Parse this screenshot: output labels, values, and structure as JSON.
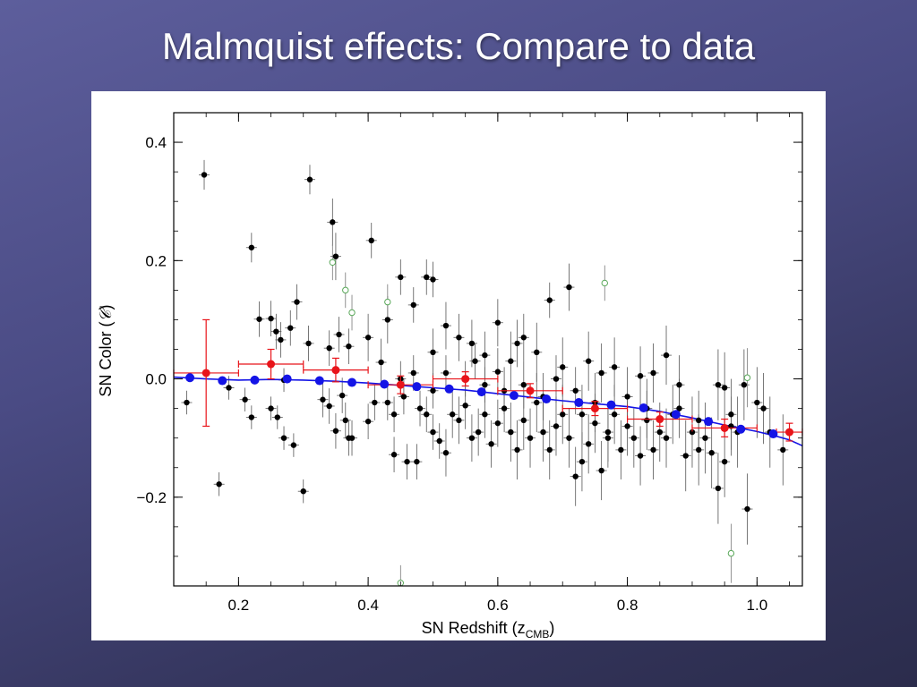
{
  "slide": {
    "title": "Malmquist effects: Compare to data"
  },
  "colors": {
    "data_points": "#000000",
    "binned_data": "#e8141a",
    "model_points": "#1414e6",
    "excluded_points": "#5aa85a"
  },
  "chart_data": {
    "type": "scatter",
    "title": "",
    "xlabel_main": "SN Redshift (z",
    "xlabel_sub": "CMB",
    "xlabel_close": ")",
    "ylabel_main": "SN Color (",
    "ylabel_symbol": "𝒞",
    "ylabel_close": ")",
    "xlim": [
      0.1,
      1.07
    ],
    "ylim": [
      -0.35,
      0.45
    ],
    "x_ticks": [
      {
        "value": 0.2,
        "label": "0.2"
      },
      {
        "value": 0.4,
        "label": "0.4"
      },
      {
        "value": 0.6,
        "label": "0.6"
      },
      {
        "value": 0.8,
        "label": "0.8"
      },
      {
        "value": 1.0,
        "label": "1.0"
      }
    ],
    "y_ticks": [
      {
        "value": 0.4,
        "label": "0.4"
      },
      {
        "value": 0.2,
        "label": "0.2"
      },
      {
        "value": 0.0,
        "label": "0.0"
      },
      {
        "value": -0.2,
        "label": "−0.2"
      }
    ],
    "grid": false,
    "legend": "none",
    "series": [
      {
        "style": "black-filled-with-errorbars",
        "points": [
          {
            "x": 0.147,
            "y": 0.345,
            "err": 0.025
          },
          {
            "x": 0.31,
            "y": 0.337,
            "err": 0.025
          },
          {
            "x": 0.345,
            "y": 0.265,
            "err": 0.04
          },
          {
            "x": 0.22,
            "y": 0.222,
            "err": 0.025
          },
          {
            "x": 0.405,
            "y": 0.234,
            "err": 0.03
          },
          {
            "x": 0.35,
            "y": 0.207,
            "err": 0.04
          },
          {
            "x": 0.45,
            "y": 0.172,
            "err": 0.03
          },
          {
            "x": 0.49,
            "y": 0.172,
            "err": 0.03
          },
          {
            "x": 0.5,
            "y": 0.168,
            "err": 0.03
          },
          {
            "x": 0.71,
            "y": 0.155,
            "err": 0.04
          },
          {
            "x": 0.68,
            "y": 0.133,
            "err": 0.03
          },
          {
            "x": 0.29,
            "y": 0.13,
            "err": 0.03
          },
          {
            "x": 0.47,
            "y": 0.125,
            "err": 0.03
          },
          {
            "x": 0.232,
            "y": 0.101,
            "err": 0.03
          },
          {
            "x": 0.25,
            "y": 0.102,
            "err": 0.03
          },
          {
            "x": 0.258,
            "y": 0.08,
            "err": 0.03
          },
          {
            "x": 0.28,
            "y": 0.086,
            "err": 0.03
          },
          {
            "x": 0.265,
            "y": 0.066,
            "err": 0.03
          },
          {
            "x": 0.308,
            "y": 0.06,
            "err": 0.03
          },
          {
            "x": 0.355,
            "y": 0.075,
            "err": 0.03
          },
          {
            "x": 0.34,
            "y": 0.052,
            "err": 0.03
          },
          {
            "x": 0.37,
            "y": 0.055,
            "err": 0.03
          },
          {
            "x": 0.43,
            "y": 0.1,
            "err": 0.04
          },
          {
            "x": 0.52,
            "y": 0.09,
            "err": 0.04
          },
          {
            "x": 0.6,
            "y": 0.095,
            "err": 0.04
          },
          {
            "x": 0.63,
            "y": 0.06,
            "err": 0.04
          },
          {
            "x": 0.56,
            "y": 0.06,
            "err": 0.04
          },
          {
            "x": 0.54,
            "y": 0.07,
            "err": 0.04
          },
          {
            "x": 0.64,
            "y": 0.07,
            "err": 0.04
          },
          {
            "x": 0.4,
            "y": 0.07,
            "err": 0.04
          },
          {
            "x": 0.42,
            "y": 0.028,
            "err": 0.04
          },
          {
            "x": 0.5,
            "y": 0.045,
            "err": 0.04
          },
          {
            "x": 0.58,
            "y": 0.04,
            "err": 0.04
          },
          {
            "x": 0.62,
            "y": 0.03,
            "err": 0.05
          },
          {
            "x": 0.66,
            "y": 0.045,
            "err": 0.05
          },
          {
            "x": 0.7,
            "y": 0.02,
            "err": 0.05
          },
          {
            "x": 0.74,
            "y": 0.03,
            "err": 0.05
          },
          {
            "x": 0.76,
            "y": 0.01,
            "err": 0.05
          },
          {
            "x": 0.78,
            "y": 0.02,
            "err": 0.05
          },
          {
            "x": 0.82,
            "y": 0.005,
            "err": 0.05
          },
          {
            "x": 0.84,
            "y": 0.01,
            "err": 0.05
          },
          {
            "x": 0.86,
            "y": 0.04,
            "err": 0.05
          },
          {
            "x": 0.88,
            "y": -0.01,
            "err": 0.05
          },
          {
            "x": 0.94,
            "y": -0.01,
            "err": 0.06
          },
          {
            "x": 0.95,
            "y": -0.015,
            "err": 0.06
          },
          {
            "x": 0.98,
            "y": -0.01,
            "err": 0.06
          },
          {
            "x": 1.0,
            "y": -0.04,
            "err": 0.06
          },
          {
            "x": 1.01,
            "y": -0.05,
            "err": 0.06
          },
          {
            "x": 0.12,
            "y": -0.04,
            "err": 0.02
          },
          {
            "x": 0.185,
            "y": -0.015,
            "err": 0.02
          },
          {
            "x": 0.21,
            "y": -0.035,
            "err": 0.02
          },
          {
            "x": 0.22,
            "y": -0.065,
            "err": 0.02
          },
          {
            "x": 0.25,
            "y": -0.05,
            "err": 0.02
          },
          {
            "x": 0.26,
            "y": -0.065,
            "err": 0.02
          },
          {
            "x": 0.27,
            "y": -0.1,
            "err": 0.02
          },
          {
            "x": 0.285,
            "y": -0.112,
            "err": 0.02
          },
          {
            "x": 0.27,
            "y": -0.002,
            "err": 0.02
          },
          {
            "x": 0.33,
            "y": -0.035,
            "err": 0.03
          },
          {
            "x": 0.34,
            "y": -0.046,
            "err": 0.03
          },
          {
            "x": 0.36,
            "y": -0.028,
            "err": 0.03
          },
          {
            "x": 0.365,
            "y": -0.07,
            "err": 0.03
          },
          {
            "x": 0.37,
            "y": -0.1,
            "err": 0.03
          },
          {
            "x": 0.375,
            "y": -0.1,
            "err": 0.03
          },
          {
            "x": 0.35,
            "y": -0.088,
            "err": 0.03
          },
          {
            "x": 0.4,
            "y": -0.072,
            "err": 0.03
          },
          {
            "x": 0.41,
            "y": -0.04,
            "err": 0.03
          },
          {
            "x": 0.43,
            "y": -0.04,
            "err": 0.03
          },
          {
            "x": 0.44,
            "y": -0.06,
            "err": 0.03
          },
          {
            "x": 0.455,
            "y": -0.03,
            "err": 0.03
          },
          {
            "x": 0.46,
            "y": -0.14,
            "err": 0.03
          },
          {
            "x": 0.475,
            "y": -0.14,
            "err": 0.03
          },
          {
            "x": 0.44,
            "y": -0.128,
            "err": 0.03
          },
          {
            "x": 0.48,
            "y": -0.05,
            "err": 0.03
          },
          {
            "x": 0.49,
            "y": -0.06,
            "err": 0.03
          },
          {
            "x": 0.5,
            "y": -0.09,
            "err": 0.03
          },
          {
            "x": 0.51,
            "y": -0.105,
            "err": 0.03
          },
          {
            "x": 0.52,
            "y": -0.125,
            "err": 0.04
          },
          {
            "x": 0.53,
            "y": -0.06,
            "err": 0.04
          },
          {
            "x": 0.54,
            "y": -0.07,
            "err": 0.04
          },
          {
            "x": 0.55,
            "y": -0.045,
            "err": 0.04
          },
          {
            "x": 0.56,
            "y": -0.1,
            "err": 0.04
          },
          {
            "x": 0.57,
            "y": -0.09,
            "err": 0.04
          },
          {
            "x": 0.58,
            "y": -0.06,
            "err": 0.04
          },
          {
            "x": 0.59,
            "y": -0.11,
            "err": 0.04
          },
          {
            "x": 0.6,
            "y": -0.075,
            "err": 0.04
          },
          {
            "x": 0.61,
            "y": -0.05,
            "err": 0.04
          },
          {
            "x": 0.62,
            "y": -0.09,
            "err": 0.05
          },
          {
            "x": 0.63,
            "y": -0.12,
            "err": 0.05
          },
          {
            "x": 0.64,
            "y": -0.07,
            "err": 0.05
          },
          {
            "x": 0.65,
            "y": -0.1,
            "err": 0.05
          },
          {
            "x": 0.66,
            "y": -0.04,
            "err": 0.05
          },
          {
            "x": 0.67,
            "y": -0.09,
            "err": 0.05
          },
          {
            "x": 0.68,
            "y": -0.12,
            "err": 0.05
          },
          {
            "x": 0.69,
            "y": -0.08,
            "err": 0.05
          },
          {
            "x": 0.7,
            "y": -0.06,
            "err": 0.05
          },
          {
            "x": 0.71,
            "y": -0.1,
            "err": 0.05
          },
          {
            "x": 0.72,
            "y": -0.165,
            "err": 0.05
          },
          {
            "x": 0.73,
            "y": -0.14,
            "err": 0.05
          },
          {
            "x": 0.74,
            "y": -0.11,
            "err": 0.05
          },
          {
            "x": 0.75,
            "y": -0.075,
            "err": 0.05
          },
          {
            "x": 0.76,
            "y": -0.155,
            "err": 0.05
          },
          {
            "x": 0.77,
            "y": -0.09,
            "err": 0.05
          },
          {
            "x": 0.78,
            "y": -0.06,
            "err": 0.05
          },
          {
            "x": 0.79,
            "y": -0.12,
            "err": 0.05
          },
          {
            "x": 0.8,
            "y": -0.08,
            "err": 0.05
          },
          {
            "x": 0.81,
            "y": -0.1,
            "err": 0.05
          },
          {
            "x": 0.82,
            "y": -0.13,
            "err": 0.05
          },
          {
            "x": 0.83,
            "y": -0.07,
            "err": 0.05
          },
          {
            "x": 0.84,
            "y": -0.12,
            "err": 0.05
          },
          {
            "x": 0.85,
            "y": -0.09,
            "err": 0.05
          },
          {
            "x": 0.86,
            "y": -0.1,
            "err": 0.05
          },
          {
            "x": 0.87,
            "y": -0.06,
            "err": 0.05
          },
          {
            "x": 0.89,
            "y": -0.13,
            "err": 0.06
          },
          {
            "x": 0.9,
            "y": -0.09,
            "err": 0.06
          },
          {
            "x": 0.91,
            "y": -0.12,
            "err": 0.06
          },
          {
            "x": 0.92,
            "y": -0.1,
            "err": 0.06
          },
          {
            "x": 0.93,
            "y": -0.125,
            "err": 0.06
          },
          {
            "x": 0.94,
            "y": -0.185,
            "err": 0.06
          },
          {
            "x": 0.95,
            "y": -0.14,
            "err": 0.06
          },
          {
            "x": 0.96,
            "y": -0.06,
            "err": 0.06
          },
          {
            "x": 0.97,
            "y": -0.09,
            "err": 0.06
          },
          {
            "x": 0.985,
            "y": -0.22,
            "err": 0.06
          },
          {
            "x": 1.02,
            "y": -0.09,
            "err": 0.06
          },
          {
            "x": 1.04,
            "y": -0.12,
            "err": 0.06
          },
          {
            "x": 0.3,
            "y": -0.19,
            "err": 0.02
          },
          {
            "x": 0.17,
            "y": -0.178,
            "err": 0.02
          },
          {
            "x": 0.45,
            "y": 0.0,
            "err": 0.03
          },
          {
            "x": 0.47,
            "y": 0.01,
            "err": 0.03
          },
          {
            "x": 0.5,
            "y": -0.02,
            "err": 0.03
          },
          {
            "x": 0.55,
            "y": 0.0,
            "err": 0.03
          },
          {
            "x": 0.58,
            "y": -0.01,
            "err": 0.03
          },
          {
            "x": 0.61,
            "y": -0.02,
            "err": 0.04
          },
          {
            "x": 0.64,
            "y": -0.01,
            "err": 0.04
          },
          {
            "x": 0.67,
            "y": -0.03,
            "err": 0.04
          },
          {
            "x": 0.72,
            "y": -0.02,
            "err": 0.04
          },
          {
            "x": 0.75,
            "y": -0.04,
            "err": 0.05
          },
          {
            "x": 0.8,
            "y": -0.03,
            "err": 0.05
          },
          {
            "x": 0.83,
            "y": -0.05,
            "err": 0.05
          },
          {
            "x": 0.88,
            "y": -0.05,
            "err": 0.05
          },
          {
            "x": 0.91,
            "y": -0.07,
            "err": 0.05
          },
          {
            "x": 0.96,
            "y": -0.08,
            "err": 0.05
          },
          {
            "x": 0.52,
            "y": 0.01,
            "err": 0.03
          },
          {
            "x": 0.565,
            "y": 0.03,
            "err": 0.03
          },
          {
            "x": 0.6,
            "y": 0.012,
            "err": 0.04
          },
          {
            "x": 0.69,
            "y": 0.0,
            "err": 0.04
          },
          {
            "x": 0.73,
            "y": -0.06,
            "err": 0.05
          },
          {
            "x": 0.77,
            "y": -0.1,
            "err": 0.05
          }
        ]
      },
      {
        "style": "green-open",
        "points": [
          {
            "x": 0.345,
            "y": 0.197,
            "err": 0.03
          },
          {
            "x": 0.365,
            "y": 0.15,
            "err": 0.03
          },
          {
            "x": 0.375,
            "y": 0.112,
            "err": 0.03
          },
          {
            "x": 0.43,
            "y": 0.13,
            "err": 0.03
          },
          {
            "x": 0.765,
            "y": 0.162,
            "err": 0.03
          },
          {
            "x": 0.985,
            "y": 0.002,
            "err": 0.05
          },
          {
            "x": 0.96,
            "y": -0.295,
            "err": 0.05
          },
          {
            "x": 0.45,
            "y": -0.345,
            "err": 0.03
          }
        ]
      },
      {
        "style": "red-binned",
        "points": [
          {
            "x": 0.15,
            "y": 0.01,
            "xerr": 0.05,
            "err": 0.09
          },
          {
            "x": 0.25,
            "y": 0.025,
            "xerr": 0.05,
            "err": 0.025
          },
          {
            "x": 0.35,
            "y": 0.015,
            "xerr": 0.05,
            "err": 0.02
          },
          {
            "x": 0.45,
            "y": -0.01,
            "xerr": 0.05,
            "err": 0.015
          },
          {
            "x": 0.55,
            "y": 0.0,
            "xerr": 0.05,
            "err": 0.012
          },
          {
            "x": 0.65,
            "y": -0.02,
            "xerr": 0.05,
            "err": 0.012
          },
          {
            "x": 0.75,
            "y": -0.05,
            "xerr": 0.05,
            "err": 0.012
          },
          {
            "x": 0.85,
            "y": -0.068,
            "xerr": 0.05,
            "err": 0.012
          },
          {
            "x": 0.95,
            "y": -0.083,
            "xerr": 0.05,
            "err": 0.015
          },
          {
            "x": 1.05,
            "y": -0.09,
            "xerr": 0.02,
            "err": 0.015
          }
        ]
      },
      {
        "style": "blue-model",
        "points": [
          {
            "x": 0.125,
            "y": 0.002
          },
          {
            "x": 0.175,
            "y": -0.003
          },
          {
            "x": 0.225,
            "y": -0.002
          },
          {
            "x": 0.275,
            "y": 0.0
          },
          {
            "x": 0.325,
            "y": -0.003
          },
          {
            "x": 0.375,
            "y": -0.006
          },
          {
            "x": 0.425,
            "y": -0.009
          },
          {
            "x": 0.475,
            "y": -0.013
          },
          {
            "x": 0.525,
            "y": -0.017
          },
          {
            "x": 0.575,
            "y": -0.022
          },
          {
            "x": 0.625,
            "y": -0.028
          },
          {
            "x": 0.675,
            "y": -0.034
          },
          {
            "x": 0.725,
            "y": -0.04
          },
          {
            "x": 0.775,
            "y": -0.044
          },
          {
            "x": 0.825,
            "y": -0.049
          },
          {
            "x": 0.875,
            "y": -0.06
          },
          {
            "x": 0.925,
            "y": -0.072
          },
          {
            "x": 0.975,
            "y": -0.085
          },
          {
            "x": 1.025,
            "y": -0.093
          }
        ]
      }
    ],
    "model_curve": {
      "x": [
        0.1,
        0.15,
        0.2,
        0.25,
        0.3,
        0.35,
        0.4,
        0.45,
        0.5,
        0.55,
        0.6,
        0.65,
        0.7,
        0.75,
        0.8,
        0.85,
        0.9,
        0.95,
        1.0,
        1.03,
        1.05,
        1.07
      ],
      "y": [
        0.003,
        0.0,
        -0.002,
        -0.001,
        -0.002,
        -0.004,
        -0.007,
        -0.011,
        -0.015,
        -0.019,
        -0.025,
        -0.031,
        -0.037,
        -0.042,
        -0.047,
        -0.055,
        -0.066,
        -0.078,
        -0.089,
        -0.097,
        -0.103,
        -0.113
      ]
    }
  }
}
